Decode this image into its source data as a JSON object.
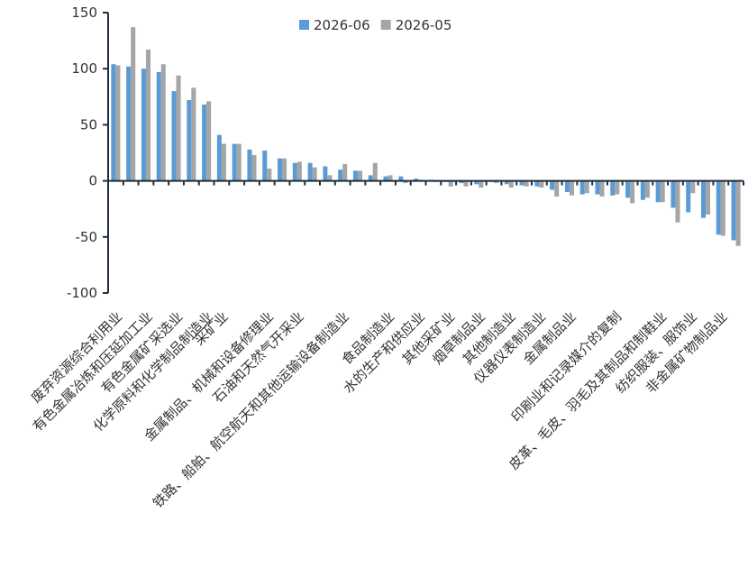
{
  "chart_data": {
    "type": "bar",
    "categories": [
      "废弃资源综合利用业",
      null,
      "有色金属冶炼和压延加工业",
      null,
      "有色金属矿采选业",
      null,
      "化学原料和化学制品制造业",
      "采矿业",
      null,
      null,
      "金属制品、机械和设备修理业",
      null,
      "石油和天然气开采业",
      null,
      null,
      "铁路、船舶、航空航天和其他运输设备制造业",
      null,
      null,
      "食品制造业",
      null,
      "水的生产和供应业",
      null,
      "其他采矿业",
      null,
      "烟草制品业",
      null,
      "其他制造业",
      null,
      "仪器仪表制造业",
      null,
      "金属制品业",
      null,
      null,
      "印刷业和记录媒介的复制",
      null,
      null,
      "皮革、毛皮、羽毛及其制品和制鞋业",
      null,
      "纺织服装、服饰业",
      null,
      "非金属矿物制品业",
      null
    ],
    "series": [
      {
        "name": "2026-06",
        "color": "#5b9bd5",
        "values": [
          104,
          102,
          100,
          97,
          80,
          72,
          68,
          41,
          33,
          28,
          27,
          20,
          16,
          16,
          13,
          10,
          9,
          5,
          4,
          4,
          2,
          1,
          -1,
          -2,
          -3,
          -1,
          -3,
          -4,
          -5,
          -8,
          -10,
          -12,
          -12,
          -13,
          -15,
          -17,
          -19,
          -24,
          -28,
          -33,
          -48,
          -53
        ]
      },
      {
        "name": "2026-05",
        "color": "#a5a5a5",
        "values": [
          103,
          137,
          117,
          104,
          94,
          83,
          71,
          33,
          33,
          23,
          11,
          20,
          17,
          12,
          5,
          15,
          9,
          16,
          5,
          -2,
          1,
          -1,
          -5,
          -5,
          -6,
          -2,
          -6,
          -5,
          -6,
          -14,
          -13,
          -11,
          -14,
          -12,
          -20,
          -15,
          -19,
          -37,
          -11,
          -30,
          -49,
          -58
        ]
      }
    ],
    "ylim": [
      -100,
      150
    ],
    "yticks": [
      -100,
      -50,
      0,
      50,
      100,
      150
    ],
    "legend": "top"
  }
}
